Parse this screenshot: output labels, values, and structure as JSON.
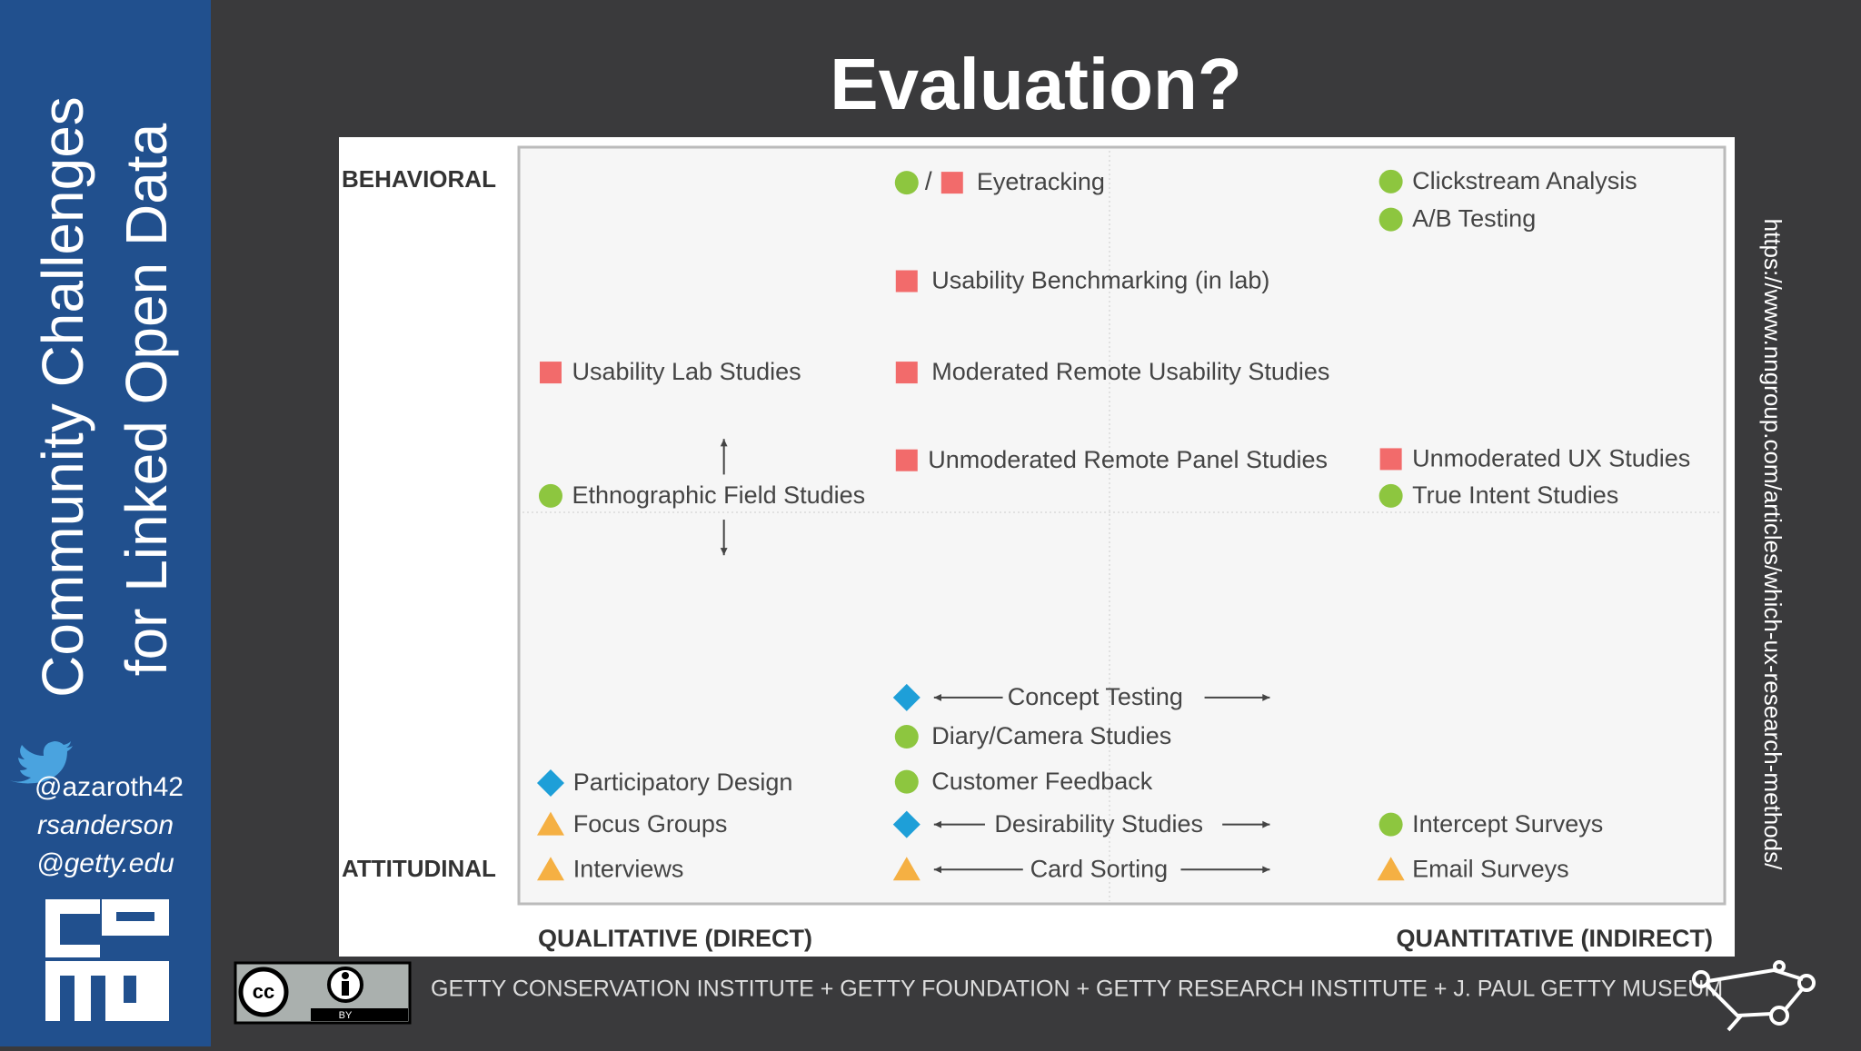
{
  "sidebar": {
    "title_lines": [
      "Community Challenges",
      "for Linked Open Data"
    ],
    "handle_lines": [
      "@azaroth42",
      "rsanderson",
      "@getty.edu"
    ]
  },
  "slide": {
    "title": "Evaluation?",
    "url": "https://www.nngroup.com/articles/which-ux-research-methods/",
    "footer": "GETTY CONSERVATION INSTITUTE + GETTY FOUNDATION + GETTY RESEARCH INSTITUTE + J. PAUL GETTY MUSEUM",
    "license": "BY"
  },
  "diagram": {
    "y_top": "BEHAVIORAL",
    "y_bottom": "ATTITUDINAL",
    "x_left": "QUALITATIVE (DIRECT)",
    "x_right": "QUANTITATIVE (INDIRECT)",
    "colors": {
      "circle": "#8dc63f",
      "square": "#f26b6b",
      "diamond": "#1e9fd8",
      "triangle": "#f5b043"
    },
    "items": [
      {
        "label": "Eyetracking",
        "markers": [
          "circle",
          "square"
        ],
        "separator": "/"
      },
      {
        "label": "Clickstream Analysis",
        "markers": [
          "circle"
        ]
      },
      {
        "label": "A/B Testing",
        "markers": [
          "circle"
        ]
      },
      {
        "label": "Usability Benchmarking (in lab)",
        "markers": [
          "square"
        ]
      },
      {
        "label": "Usability Lab Studies",
        "markers": [
          "square"
        ]
      },
      {
        "label": "Moderated Remote Usability Studies",
        "markers": [
          "square"
        ]
      },
      {
        "label": "Unmoderated Remote Panel Studies",
        "markers": [
          "square"
        ]
      },
      {
        "label": "Unmoderated UX Studies",
        "markers": [
          "square"
        ]
      },
      {
        "label": "Ethnographic Field Studies",
        "markers": [
          "circle"
        ]
      },
      {
        "label": "True Intent Studies",
        "markers": [
          "circle"
        ]
      },
      {
        "label": "Concept Testing",
        "markers": [
          "diamond"
        ]
      },
      {
        "label": "Diary/Camera Studies",
        "markers": [
          "circle"
        ]
      },
      {
        "label": "Customer Feedback",
        "markers": [
          "circle"
        ]
      },
      {
        "label": "Participatory Design",
        "markers": [
          "diamond"
        ]
      },
      {
        "label": "Focus Groups",
        "markers": [
          "triangle"
        ]
      },
      {
        "label": "Desirability Studies",
        "markers": [
          "diamond"
        ]
      },
      {
        "label": "Intercept Surveys",
        "markers": [
          "circle"
        ]
      },
      {
        "label": "Interviews",
        "markers": [
          "triangle"
        ]
      },
      {
        "label": "Card Sorting",
        "markers": [
          "triangle"
        ]
      },
      {
        "label": "Email Surveys",
        "markers": [
          "triangle"
        ]
      }
    ]
  }
}
